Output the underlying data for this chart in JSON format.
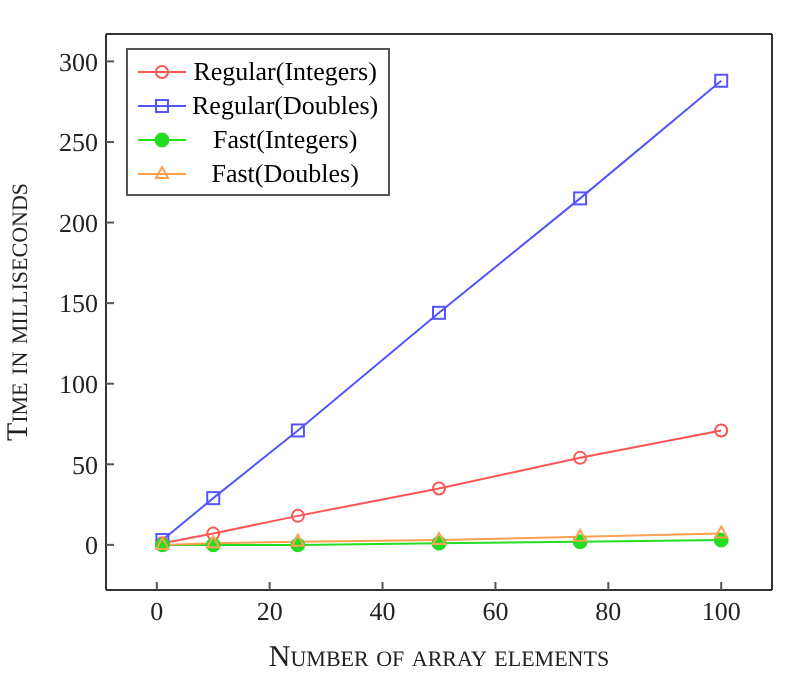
{
  "chart_data": {
    "type": "line",
    "xlabel": "Number of array elements",
    "ylabel": "Time in milliseconds",
    "x": [
      1,
      10,
      25,
      50,
      75,
      100
    ],
    "series": [
      {
        "name": "Regular(Integers)",
        "color": "#ff5555",
        "marker": "circle",
        "values": [
          1,
          7,
          18,
          35,
          54,
          71
        ]
      },
      {
        "name": "Regular(Doubles)",
        "color": "#5555ff",
        "marker": "square",
        "values": [
          3,
          29,
          71,
          144,
          215,
          288
        ]
      },
      {
        "name": "Fast(Integers)",
        "color": "#22dd22",
        "marker": "filled-circle",
        "values": [
          0,
          0,
          0,
          1,
          2,
          3
        ]
      },
      {
        "name": "Fast(Doubles)",
        "color": "#ffa050",
        "marker": "triangle",
        "values": [
          0,
          1,
          2,
          3,
          5,
          7
        ]
      }
    ],
    "xlim": [
      -9,
      109
    ],
    "xticks": [
      0,
      20,
      40,
      60,
      80,
      100
    ],
    "ylim": [
      -28,
      317
    ],
    "yticks": [
      0,
      50,
      100,
      150,
      200,
      250,
      300
    ],
    "grid": false,
    "legend": "top left"
  }
}
